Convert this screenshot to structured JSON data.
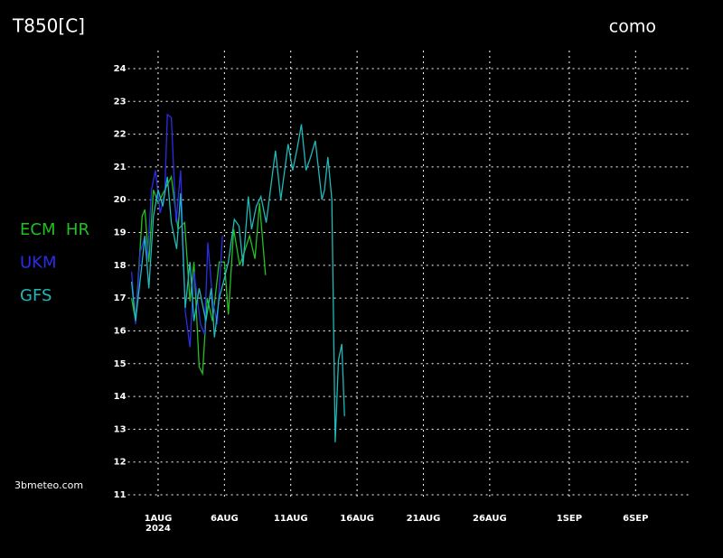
{
  "chart_data": {
    "type": "line",
    "title": "T850[C]",
    "subtitle": "como",
    "source": "3bmeteo.com",
    "ylim": [
      11,
      24
    ],
    "yticks": [
      11,
      12,
      13,
      14,
      15,
      16,
      17,
      18,
      19,
      20,
      21,
      22,
      23,
      24
    ],
    "xlim": [
      -2,
      40
    ],
    "xticks": [
      {
        "value": 0,
        "label": "1AUG"
      },
      {
        "value": 5,
        "label": "6AUG"
      },
      {
        "value": 10,
        "label": "11AUG"
      },
      {
        "value": 15,
        "label": "16AUG"
      },
      {
        "value": 20,
        "label": "21AUG"
      },
      {
        "value": 25,
        "label": "26AUG"
      },
      {
        "value": 31,
        "label": "1SEP"
      },
      {
        "value": 36,
        "label": "6SEP"
      }
    ],
    "x_year_label": "2024",
    "grid": true,
    "series": [
      {
        "name": "ECM  HR",
        "color": "#22c022",
        "x": [
          -2.0,
          -1.7,
          -1.2,
          -1.0,
          -0.7,
          -0.35,
          0,
          0.5,
          1.0,
          1.5,
          2.0,
          2.4,
          2.7,
          3.1,
          3.35,
          3.7,
          4.1,
          4.6,
          5.0,
          5.3,
          5.7,
          6.15,
          6.5,
          6.9,
          7.3,
          7.65,
          8.1
        ],
        "values": [
          17.0,
          16.3,
          19.5,
          19.7,
          18.1,
          20.3,
          19.9,
          20.3,
          20.7,
          19.1,
          19.3,
          16.9,
          18.1,
          14.9,
          14.7,
          17.0,
          16.3,
          18.1,
          18.1,
          16.5,
          19.1,
          18.0,
          18.4,
          18.9,
          18.2,
          19.9,
          17.7
        ]
      },
      {
        "name": "UKM",
        "color": "#2c2ce6",
        "x": [
          -2.0,
          -1.7,
          -1.35,
          -1.0,
          -0.8,
          -0.5,
          -0.2,
          0.15,
          0.5,
          0.7,
          1.0,
          1.35,
          1.7,
          2.05,
          2.4,
          2.7,
          3.2,
          3.5,
          3.75,
          4.1,
          4.45,
          4.85
        ],
        "values": [
          17.8,
          16.2,
          18.4,
          18.9,
          18.2,
          20.3,
          20.9,
          19.6,
          20.2,
          22.6,
          22.5,
          19.3,
          20.9,
          16.6,
          15.5,
          17.8,
          16.2,
          15.9,
          18.7,
          17.0,
          16.2,
          18.9
        ]
      },
      {
        "name": "GFS",
        "color": "#20b8b8",
        "x": [
          -2.0,
          -1.7,
          -1.2,
          -1.0,
          -0.7,
          -0.35,
          0,
          0.35,
          0.7,
          1.0,
          1.4,
          1.7,
          2.05,
          2.4,
          2.7,
          3.1,
          3.6,
          4.0,
          4.25,
          4.6,
          5.0,
          5.3,
          5.75,
          6.1,
          6.4,
          6.8,
          7.05,
          7.4,
          7.75,
          8.15,
          8.5,
          8.85,
          9.25,
          9.8,
          10.15,
          10.5,
          10.8,
          11.15,
          11.5,
          11.85,
          12.35,
          12.55,
          12.8,
          13.1,
          13.35,
          13.6,
          13.85,
          14.05
        ],
        "values": [
          17.5,
          16.3,
          18.1,
          18.9,
          17.3,
          19.5,
          20.3,
          19.8,
          20.7,
          19.3,
          18.5,
          20.2,
          16.7,
          18.1,
          16.3,
          17.3,
          16.3,
          17.3,
          15.8,
          17.0,
          17.6,
          18.1,
          19.4,
          19.2,
          18.0,
          20.1,
          19.1,
          19.8,
          20.1,
          19.3,
          20.4,
          21.5,
          20.0,
          21.7,
          20.9,
          21.6,
          22.3,
          20.9,
          21.3,
          21.8,
          20.0,
          20.3,
          21.3,
          20.0,
          12.6,
          15.1,
          15.6,
          13.4
        ]
      }
    ]
  }
}
